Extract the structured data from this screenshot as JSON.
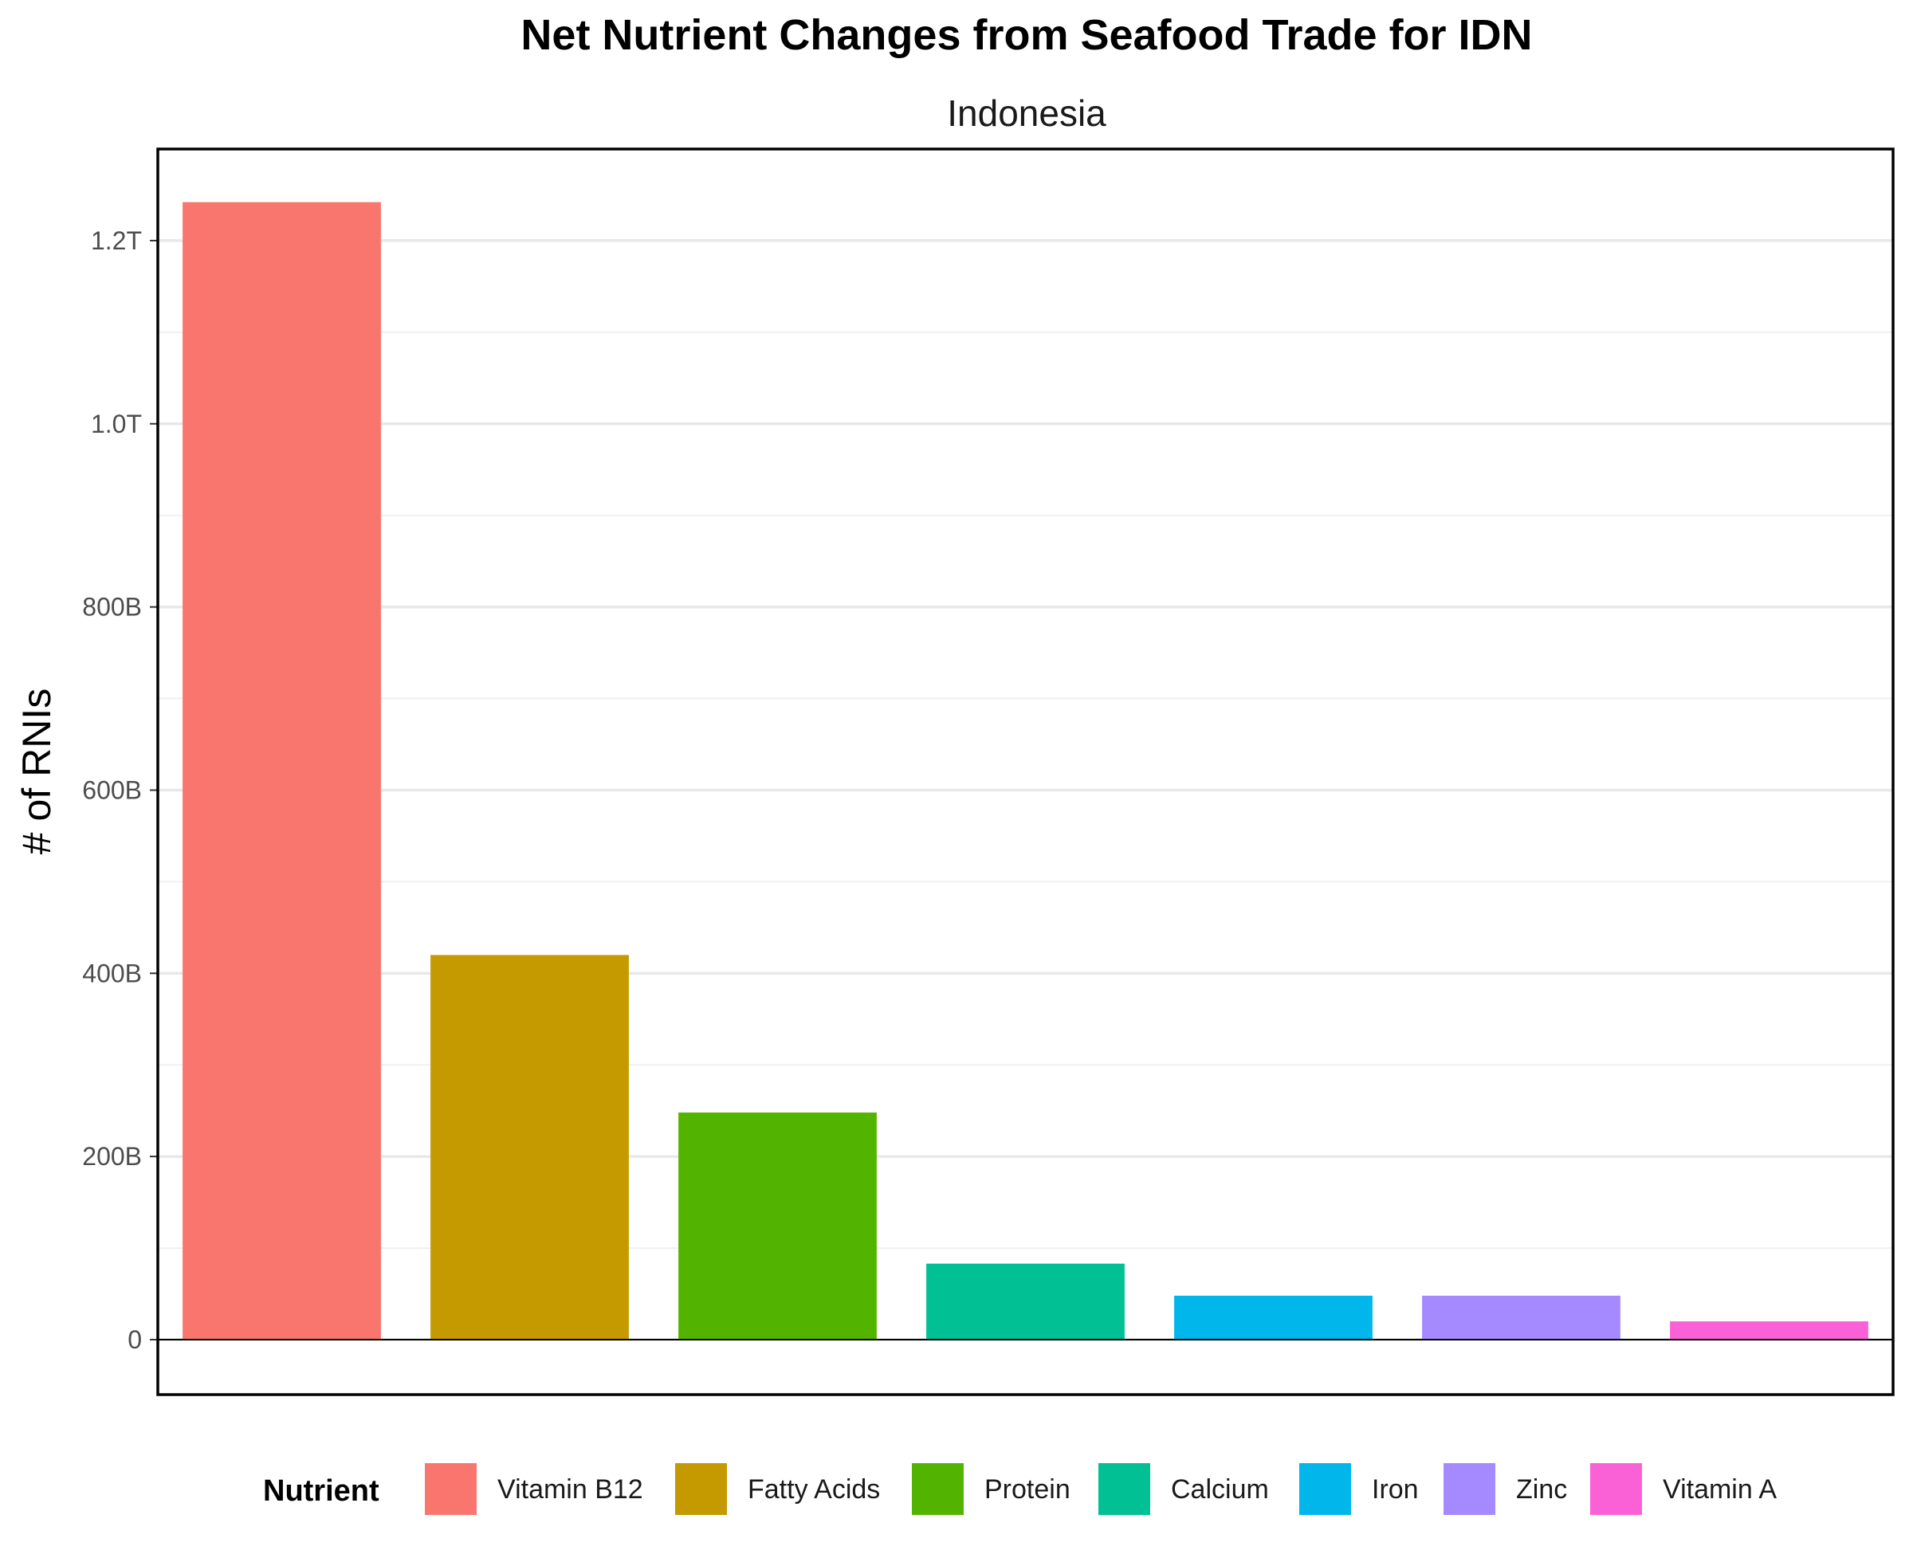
{
  "chart_data": {
    "type": "bar",
    "title": "Net Nutrient Changes from Seafood Trade for IDN",
    "subtitle": "Indonesia",
    "xlabel": "",
    "ylabel": "# of RNIs",
    "categories": [
      "Vitamin B12",
      "Fatty Acids",
      "Protein",
      "Calcium",
      "Iron",
      "Zinc",
      "Vitamin A"
    ],
    "values": [
      1242000000000,
      420000000000,
      248000000000,
      83000000000,
      48000000000,
      48000000000,
      20000000000
    ],
    "colors": [
      "#F8766D",
      "#C49A00",
      "#53B400",
      "#00C094",
      "#00B6EB",
      "#A58AFF",
      "#FB61D7"
    ],
    "y_ticks": [
      0,
      200000000000,
      400000000000,
      600000000000,
      800000000000,
      1000000000000,
      1200000000000
    ],
    "y_tick_labels": [
      "0",
      "200B",
      "400B",
      "600B",
      "800B",
      "1.0T",
      "1.2T"
    ],
    "ylim": [
      -60000000000,
      1300000000000
    ],
    "grid": true,
    "legend": {
      "title": "Nutrient",
      "position": "bottom"
    }
  }
}
